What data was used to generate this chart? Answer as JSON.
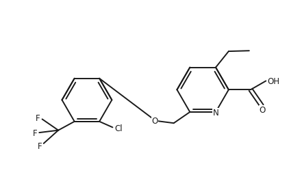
{
  "bg_color": "#ffffff",
  "line_color": "#1a1a1a",
  "line_width": 1.4,
  "font_size": 8.5,
  "fig_width": 4.38,
  "fig_height": 2.84,
  "dpi": 100,
  "xlim": [
    0,
    10
  ],
  "ylim": [
    0,
    6.5
  ]
}
